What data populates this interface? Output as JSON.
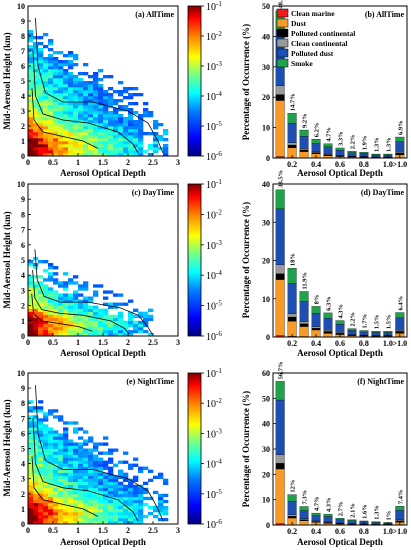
{
  "figure": {
    "aod_label": "Aerosol Optical Depth",
    "height_label": "Mid-Aerosol Height (km)",
    "occurrence_label": "Percentage of Occurrence (%)"
  },
  "colorbar": {
    "labels": [
      "10",
      "10",
      "10",
      "10",
      "10",
      "10"
    ],
    "exponents": [
      "-1",
      "-2",
      "-3",
      "-4",
      "-5",
      "-6"
    ],
    "colors": [
      "#00007f",
      "#0000ff",
      "#007fff",
      "#00ffff",
      "#7fff7f",
      "#ffff00",
      "#ff7f00",
      "#ff0000",
      "#7f0000"
    ]
  },
  "legend": {
    "items": [
      {
        "name": "Clean marine",
        "color": "#ee1c1c"
      },
      {
        "name": "Dust",
        "color": "#f79a28"
      },
      {
        "name": "Polluted continental",
        "color": "#000000"
      },
      {
        "name": "Clean continental",
        "color": "#9a9a9a"
      },
      {
        "name": "Polluted dust",
        "color": "#1d4fb3"
      },
      {
        "name": "Smoke",
        "color": "#1fa34a"
      }
    ]
  },
  "chart_data": [
    {
      "type": "heatmap",
      "title": "(a) AllTime",
      "xlabel": "Aerosol Optical Depth",
      "ylabel": "Mid-Aerosol Height (km)",
      "xlim": [
        0,
        3
      ],
      "ylim": [
        0,
        10
      ],
      "xticks": [
        "0",
        "0.5",
        "1",
        "1.5",
        "2",
        "2.5",
        "3"
      ],
      "yticks": [
        "0",
        "1",
        "2",
        "3",
        "4",
        "5",
        "6",
        "7",
        "8",
        "9",
        "10"
      ],
      "colorscale": "log10 frequency, 1e-6 to 1e-1",
      "extent": "dense"
    },
    {
      "type": "bar",
      "title": "(b) AllTime",
      "xlabel": "Aerosol Optical Depth",
      "ylabel": "Percentage of Occurrence (%)",
      "ylim": [
        0,
        50
      ],
      "yticks": [
        "0",
        "10",
        "20",
        "30",
        "40",
        "50"
      ],
      "xticks": [
        "0.2",
        "0.4",
        "0.6",
        "0.8",
        "1.0",
        ">1.0"
      ],
      "value_labels": [
        "48.5%",
        "14.7%",
        "9.2%",
        "6.2%",
        "4.7%",
        "3.3%",
        "2.2%",
        "1.9%",
        "1.3%",
        "1.3%",
        "6.9%"
      ],
      "values": [
        48.5,
        14.7,
        9.2,
        6.2,
        4.7,
        3.3,
        2.2,
        1.9,
        1.3,
        1.3,
        6.9
      ]
    },
    {
      "type": "heatmap",
      "title": "(c) DayTime",
      "xlabel": "Aerosol Optical Depth",
      "ylabel": "Mid-Aerosol Height (km)",
      "xlim": [
        0,
        3
      ],
      "ylim": [
        0,
        10
      ],
      "xticks": [
        "0",
        "0.5",
        "1",
        "1.5",
        "2",
        "2.5",
        "3"
      ],
      "yticks": [
        "0",
        "1",
        "2",
        "3",
        "4",
        "5",
        "6",
        "7",
        "8",
        "9",
        "10"
      ],
      "colorscale": "log10 frequency, 1e-6 to 1e-1",
      "extent": "sparse"
    },
    {
      "type": "bar",
      "title": "(d) DayTime",
      "xlabel": "Aerosol Optical Depth",
      "ylabel": "Percentage of Occurrence (%)",
      "ylim": [
        0,
        40
      ],
      "yticks": [
        "0",
        "10",
        "20",
        "30",
        "40"
      ],
      "xticks": [
        "0.2",
        "0.4",
        "0.6",
        "0.8",
        "1.0",
        ">1.0"
      ],
      "value_labels": [
        "38.5%",
        "18%",
        "11.9%",
        "8%",
        "6.3%",
        "4.3%",
        "2.2%",
        "1.7%",
        "1.5%",
        "1.5%",
        "6.4%"
      ],
      "values": [
        38.5,
        18,
        11.9,
        8,
        6.3,
        4.3,
        2.2,
        1.7,
        1.5,
        1.5,
        6.4
      ]
    },
    {
      "type": "heatmap",
      "title": "(e) NightTime",
      "xlabel": "Aerosol Optical Depth",
      "ylabel": "Mid-Aerosol Height (km)",
      "xlim": [
        0,
        3
      ],
      "ylim": [
        0,
        10
      ],
      "xticks": [
        "0",
        "0.5",
        "1",
        "1.5",
        "2",
        "2.5",
        "3"
      ],
      "yticks": [
        "0",
        "1",
        "2",
        "3",
        "4",
        "5",
        "6",
        "7",
        "8",
        "9",
        "10"
      ],
      "colorscale": "log10 frequency, 1e-6 to 1e-1",
      "extent": "dense"
    },
    {
      "type": "bar",
      "title": "(f) NightTime",
      "xlabel": "Aerosol Optical Depth",
      "ylabel": "Percentage of Occurrence (%)",
      "ylim": [
        0,
        60
      ],
      "yticks": [
        "0",
        "10",
        "20",
        "30",
        "40",
        "50",
        "60"
      ],
      "xticks": [
        "0.2",
        "0.4",
        "0.6",
        "0.8",
        "1.0",
        ">1.0"
      ],
      "value_labels": [
        "56.7%",
        "12%",
        "7.3%",
        "4.7%",
        "4.3%",
        "2.7%",
        "2.1%",
        "1.6%",
        "1.3%",
        "1%",
        "7.4%"
      ],
      "values": [
        56.7,
        12,
        7.3,
        4.7,
        4.3,
        2.7,
        2.1,
        1.6,
        1.3,
        1,
        7.4
      ]
    }
  ]
}
